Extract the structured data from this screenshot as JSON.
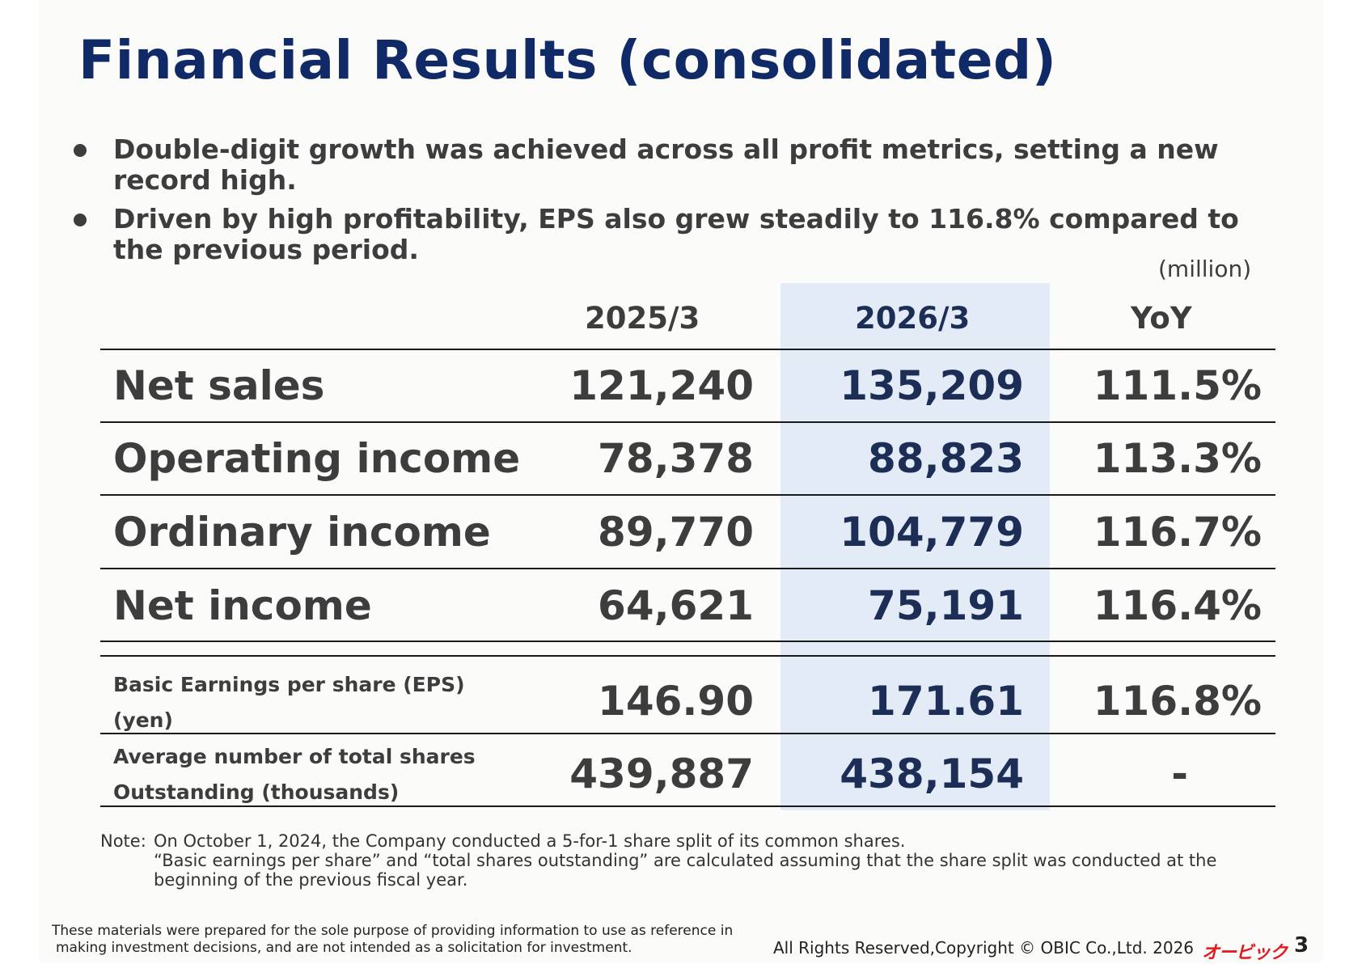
{
  "title": "Financial Results (consolidated)",
  "bullets": [
    "Double-digit growth was achieved across all profit metrics, setting a new record high.",
    "Driven by high profitability, EPS also grew steadily to 116.8% compared to the previous period."
  ],
  "unit": "(million)",
  "table": {
    "headers": [
      "2025/3",
      "2026/3",
      "YoY"
    ],
    "rows": [
      {
        "label": "Net sales",
        "v2025": "121,240",
        "v2026": "135,209",
        "yoy": "111.5%"
      },
      {
        "label": "Operating income",
        "v2025": "78,378",
        "v2026": "88,823",
        "yoy": "113.3%"
      },
      {
        "label": "Ordinary income",
        "v2025": "89,770",
        "v2026": "104,779",
        "yoy": "116.7%"
      },
      {
        "label": "Net income",
        "v2025": "64,621",
        "v2026": "75,191",
        "yoy": "116.4%"
      }
    ],
    "sub_rows": [
      {
        "label_line1": "Basic Earnings per share (EPS)",
        "label_line2": "(yen)",
        "v2025": "146.90",
        "v2026": "171.61",
        "yoy": "116.8%"
      },
      {
        "label_line1": "Average number of total shares",
        "label_line2": "Outstanding (thousands)",
        "v2025": "439,887",
        "v2026": "438,154",
        "yoy": "-"
      }
    ]
  },
  "note": {
    "lead": "Note:",
    "line1": "On October 1, 2024, the Company conducted a 5-for-1 share split of its common shares.",
    "line2": "“Basic earnings per share” and “total shares outstanding” are calculated assuming that the share split was conducted at the",
    "line3": "beginning of the previous fiscal year."
  },
  "footer": {
    "disclaimer_line1": "These materials were prepared for the sole purpose of providing information to use as reference in",
    "disclaimer_line2": "making investment decisions, and are not intended as a solicitation for investment.",
    "copyright": "All Rights Reserved,Copyright © OBIC Co.,Ltd. 2026",
    "logo": "オービック",
    "page": "3"
  },
  "colors": {
    "title": "#0f2a66",
    "highlight": "#e3ebf6",
    "logo": "#e4181d"
  }
}
